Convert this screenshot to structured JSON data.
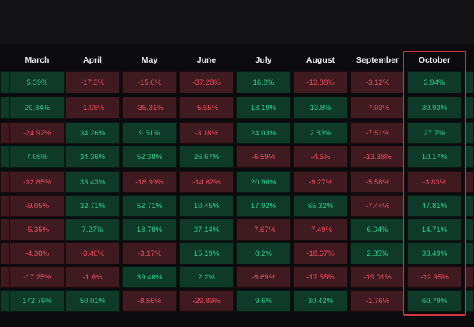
{
  "columns": [
    "March",
    "April",
    "May",
    "June",
    "July",
    "August",
    "September",
    "October"
  ],
  "rows": [
    [
      "5.39%",
      "-17.3%",
      "-15.6%",
      "-37.28%",
      "16.8%",
      "-13.88%",
      "-3.12%",
      "3.94%"
    ],
    [
      "29.84%",
      "-1.98%",
      "-35.31%",
      "-5.95%",
      "18.19%",
      "13.8%",
      "-7.03%",
      "39.93%"
    ],
    [
      "-24.92%",
      "34.26%",
      "9.51%",
      "-3.18%",
      "24.03%",
      "2.83%",
      "-7.51%",
      "27.7%"
    ],
    [
      "7.05%",
      "34.36%",
      "52.38%",
      "26.67%",
      "-6.59%",
      "-4.6%",
      "-13.38%",
      "10.17%"
    ],
    [
      "-32.85%",
      "33.43%",
      "-18.99%",
      "-14.62%",
      "20.96%",
      "-9.27%",
      "-5.58%",
      "-3.83%"
    ],
    [
      "-9.05%",
      "32.71%",
      "52.71%",
      "10.45%",
      "17.92%",
      "65.32%",
      "-7.44%",
      "47.81%"
    ],
    [
      "-5.35%",
      "7.27%",
      "18.78%",
      "27.14%",
      "-7.67%",
      "-7.49%",
      "6.04%",
      "14.71%"
    ],
    [
      "-4.38%",
      "-3.46%",
      "-3.17%",
      "15.19%",
      "8.2%",
      "-18.67%",
      "2.35%",
      "33.49%"
    ],
    [
      "-17.25%",
      "-1.6%",
      "39.46%",
      "2.2%",
      "-9.69%",
      "-17.55%",
      "-19.01%",
      "-12.95%"
    ],
    [
      "172.76%",
      "50.01%",
      "-8.56%",
      "-29.89%",
      "9.6%",
      "30.42%",
      "-1.76%",
      "60.79%"
    ]
  ],
  "highlighted_column": "October",
  "colors": {
    "positive_bg": "#0f3a2a",
    "positive_text": "#2ecf8b",
    "negative_bg": "#3f1a20",
    "negative_text": "#ef4f5c",
    "highlight_border": "#d0343f"
  }
}
